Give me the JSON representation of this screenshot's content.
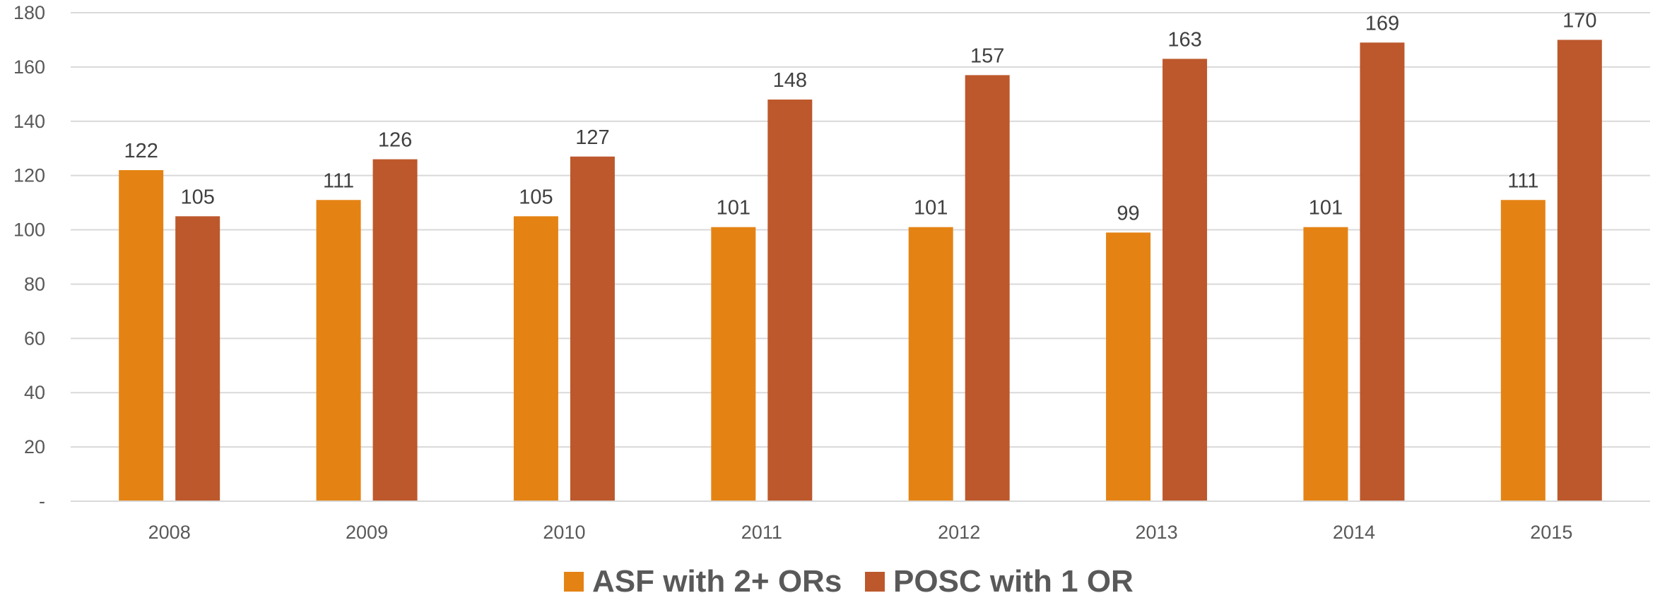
{
  "chart_data": {
    "type": "bar",
    "categories": [
      "2008",
      "2009",
      "2010",
      "2011",
      "2012",
      "2013",
      "2014",
      "2015"
    ],
    "series": [
      {
        "name": "ASF with 2+ ORs",
        "values": [
          122,
          111,
          105,
          101,
          101,
          99,
          101,
          111
        ],
        "color": "#E48314"
      },
      {
        "name": "POSC with 1 OR",
        "values": [
          105,
          126,
          127,
          148,
          157,
          163,
          169,
          170
        ],
        "color": "#BD582C"
      }
    ],
    "ylim": [
      0,
      180
    ],
    "yticks": [
      0,
      20,
      40,
      60,
      80,
      100,
      120,
      140,
      160,
      180
    ],
    "ytick_labels": [
      "-",
      "20",
      "40",
      "60",
      "80",
      "100",
      "120",
      "140",
      "160",
      "180"
    ],
    "grid": true,
    "legend": "bottom-center",
    "gridline_color": "#D9D9D9",
    "axis_text_color": "#595959"
  }
}
